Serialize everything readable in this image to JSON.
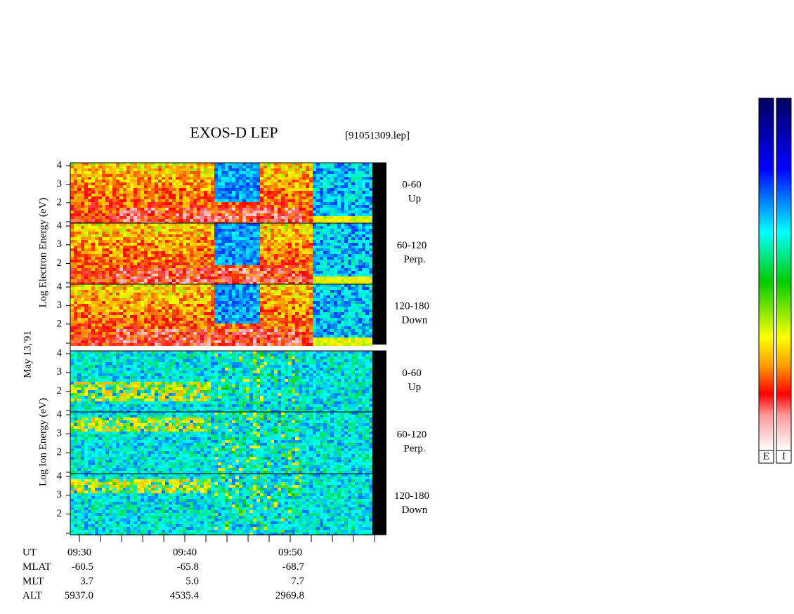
{
  "title": "EXOS-D LEP",
  "file": "[91051309.lep]",
  "date": "May 13,'91",
  "electron_axis": "Log  Electron  Energy (eV)",
  "ion_axis": "Log  Ion  Energy (eV)",
  "ylim": [
    0.9,
    4.15
  ],
  "panels": [
    {
      "species": "electron",
      "angle": "0-60",
      "direction": "Up",
      "yticks": [
        4,
        3,
        2
      ]
    },
    {
      "species": "electron",
      "angle": "60-120",
      "direction": "Perp.",
      "yticks": [
        4,
        3,
        2
      ]
    },
    {
      "species": "electron",
      "angle": "120-180",
      "direction": "Down",
      "yticks": [
        4,
        3,
        2
      ]
    },
    {
      "species": "ion",
      "angle": "0-60",
      "direction": "Up",
      "yticks": [
        4,
        3,
        2
      ]
    },
    {
      "species": "ion",
      "angle": "60-120",
      "direction": "Perp.",
      "yticks": [
        4,
        3,
        2
      ]
    },
    {
      "species": "ion",
      "angle": "120-180",
      "direction": "Down",
      "yticks": [
        4,
        3,
        2
      ]
    }
  ],
  "time_axis": {
    "xlim": [
      29.13,
      59.13
    ],
    "minor_ticks": [
      30,
      32,
      34,
      36,
      38,
      40,
      42,
      44,
      46,
      48,
      50,
      52,
      54,
      56,
      58
    ],
    "row_labels": [
      "UT",
      "MLAT",
      "MLT",
      "ALT"
    ],
    "columns": [
      {
        "minute": 30,
        "rows": [
          "09:30",
          "-60.5",
          "3.7",
          "5937.0"
        ]
      },
      {
        "minute": 40,
        "rows": [
          "09:40",
          "-65.8",
          "5.0",
          "4535.4"
        ]
      },
      {
        "minute": 50,
        "rows": [
          "09:50",
          "-68.7",
          "7.7",
          "2969.8"
        ]
      }
    ]
  },
  "colorbars": [
    "E",
    "I"
  ]
}
